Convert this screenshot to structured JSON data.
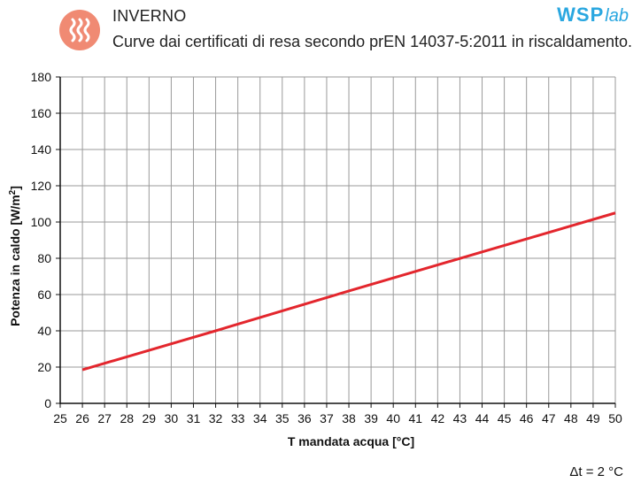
{
  "header": {
    "title": "INVERNO",
    "subtitle": "Curve dai certificati di resa secondo prEN 14037-5:2011 in riscaldamento.",
    "icon": "heating-waves-icon",
    "brand_main": "WSP",
    "brand_sub": "lab"
  },
  "footnote": "Δt = 2 °C",
  "colors": {
    "accent": "#f08a73",
    "brand": "#2aa7e0",
    "series": "#e3262d",
    "grid": "#9a9a9a"
  },
  "chart_data": {
    "type": "line",
    "xlabel": "T mandata acqua [°C]",
    "ylabel": "Potenza in caldo [W/m",
    "ylabel_sup": "2",
    "ylabel_end": "]",
    "xlim": [
      25,
      50
    ],
    "ylim": [
      0,
      180
    ],
    "x_ticks": [
      25,
      26,
      27,
      28,
      29,
      30,
      31,
      32,
      33,
      34,
      35,
      36,
      37,
      38,
      39,
      40,
      41,
      42,
      43,
      44,
      45,
      46,
      47,
      48,
      49,
      50
    ],
    "y_ticks": [
      0,
      20,
      40,
      60,
      80,
      100,
      120,
      140,
      160,
      180
    ],
    "grid": true,
    "series": [
      {
        "x": [
          26,
          32,
          38,
          44,
          50
        ],
        "y": [
          18.5,
          40,
          62,
          83.5,
          105
        ]
      }
    ]
  }
}
